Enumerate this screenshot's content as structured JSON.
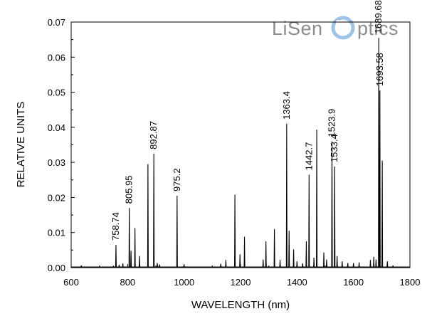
{
  "chart_data": {
    "type": "line",
    "title": "",
    "xlabel": "WAVELENGTH (nm)",
    "ylabel": "RELATIVE UNITS",
    "xlim": [
      600,
      1800
    ],
    "ylim": [
      0,
      0.07
    ],
    "xticks": [
      "600",
      "800",
      "1000",
      "1200",
      "1400",
      "1600",
      "1800"
    ],
    "yticks": [
      "0.00",
      "0.01",
      "0.02",
      "0.03",
      "0.04",
      "0.05",
      "0.06",
      "0.07"
    ],
    "grid": false,
    "series": [
      {
        "x": [
          636,
          750,
          758.74,
          770,
          783,
          805.95,
          812,
          826,
          842,
          872,
          892.87,
          905,
          913,
          975.2,
          1000,
          1130,
          1148,
          1180,
          1198,
          1214,
          1280,
          1290,
          1320,
          1340,
          1363.4,
          1372,
          1388,
          1400,
          1420,
          1433,
          1442.7,
          1460,
          1470,
          1495,
          1505,
          1523.9,
          1533.4,
          1542,
          1560,
          1580,
          1600,
          1620,
          1660,
          1672,
          1680,
          1689.68,
          1693.58,
          1702,
          1720,
          1740
        ],
        "y": [
          0.0006,
          0.0004,
          0.0065,
          0.0008,
          0.0012,
          0.017,
          0.0048,
          0.0113,
          0.0033,
          0.0295,
          0.0325,
          0.0013,
          0.0009,
          0.0205,
          0.0008,
          0.0011,
          0.0022,
          0.0208,
          0.0038,
          0.0088,
          0.0023,
          0.0075,
          0.011,
          0.0022,
          0.041,
          0.0105,
          0.0052,
          0.0018,
          0.0012,
          0.0075,
          0.0265,
          0.0028,
          0.0393,
          0.0043,
          0.0023,
          0.036,
          0.0288,
          0.0033,
          0.0018,
          0.0013,
          0.0013,
          0.0015,
          0.0022,
          0.0031,
          0.0023,
          0.0655,
          0.0505,
          0.0305,
          0.0018,
          0.0006
        ]
      }
    ],
    "annotations": [
      "758.74",
      "805.95",
      "892.87",
      "975.2",
      "1363.4",
      "1442.7",
      "1523.9",
      "1533.4",
      "1689.68",
      "1693.58"
    ]
  },
  "logo": {
    "text_left": "LiSen",
    "text_right": "ptics",
    "color": "#8c8c8c",
    "accent": "#9ec3e6"
  },
  "colors": {
    "line": "#000000",
    "axis": "#000000"
  }
}
